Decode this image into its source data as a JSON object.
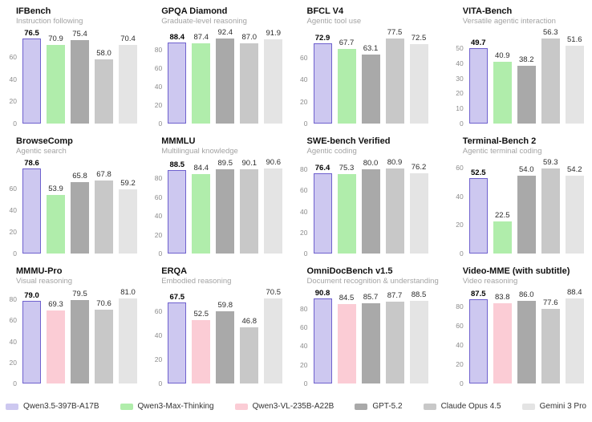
{
  "page": {
    "background": "#ffffff"
  },
  "colors": {
    "Qwen3.5-397B-A17B": {
      "fill": "#cdc8f0",
      "stroke": "#6f61ce"
    },
    "Qwen3-Max-Thinking": {
      "fill": "#b0edab"
    },
    "Qwen3-VL-235B-A22B": {
      "fill": "#fbccd5"
    },
    "GPT-5.2": {
      "fill": "#a9a9a9"
    },
    "Claude Opus 4.5": {
      "fill": "#c8c8c8"
    },
    "Gemini 3 Pro": {
      "fill": "#e4e4e4"
    }
  },
  "legend": {
    "position": "bottom",
    "items": [
      {
        "label": "Qwen3.5-397B-A17B",
        "color": "#cdc8f0"
      },
      {
        "label": "Qwen3-Max-Thinking",
        "color": "#b0edab"
      },
      {
        "label": "Qwen3-VL-235B-A22B",
        "color": "#fbccd5"
      },
      {
        "label": "GPT-5.2",
        "color": "#a9a9a9"
      },
      {
        "label": "Claude Opus 4.5",
        "color": "#c8c8c8"
      },
      {
        "label": "Gemini 3 Pro",
        "color": "#e4e4e4"
      }
    ]
  },
  "chart_data": [
    {
      "type": "bar",
      "title": "IFBench",
      "subtitle": "Instruction following",
      "series": [
        "Qwen3.5-397B-A17B",
        "Qwen3-Max-Thinking",
        "GPT-5.2",
        "Claude Opus 4.5",
        "Gemini 3 Pro"
      ],
      "values": [
        76.5,
        70.9,
        75.4,
        58.0,
        70.4
      ],
      "yticks": [
        0,
        20,
        40,
        60
      ],
      "ylim": [
        0,
        76.5
      ],
      "grid": false
    },
    {
      "type": "bar",
      "title": "GPQA Diamond",
      "subtitle": "Graduate-level reasoning",
      "series": [
        "Qwen3.5-397B-A17B",
        "Qwen3-Max-Thinking",
        "GPT-5.2",
        "Claude Opus 4.5",
        "Gemini 3 Pro"
      ],
      "values": [
        88.4,
        87.4,
        92.4,
        87.0,
        91.9
      ],
      "yticks": [
        0,
        20,
        40,
        60,
        80
      ],
      "ylim": [
        0,
        92.4
      ],
      "grid": false
    },
    {
      "type": "bar",
      "title": "BFCL V4",
      "subtitle": "Agentic tool use",
      "series": [
        "Qwen3.5-397B-A17B",
        "Qwen3-Max-Thinking",
        "GPT-5.2",
        "Claude Opus 4.5",
        "Gemini 3 Pro"
      ],
      "values": [
        72.9,
        67.7,
        63.1,
        77.5,
        72.5
      ],
      "yticks": [
        0,
        20,
        40,
        60
      ],
      "ylim": [
        0,
        77.5
      ],
      "grid": false
    },
    {
      "type": "bar",
      "title": "VITA-Bench",
      "subtitle": "Versatile agentic interaction",
      "series": [
        "Qwen3.5-397B-A17B",
        "Qwen3-Max-Thinking",
        "GPT-5.2",
        "Claude Opus 4.5",
        "Gemini 3 Pro"
      ],
      "values": [
        49.7,
        40.9,
        38.2,
        56.3,
        51.6
      ],
      "yticks": [
        0,
        10,
        20,
        30,
        40,
        50
      ],
      "ylim": [
        0,
        56.3
      ],
      "grid": false
    },
    {
      "type": "bar",
      "title": "BrowseComp",
      "subtitle": "Agentic search",
      "series": [
        "Qwen3.5-397B-A17B",
        "Qwen3-Max-Thinking",
        "GPT-5.2",
        "Claude Opus 4.5",
        "Gemini 3 Pro"
      ],
      "values": [
        78.6,
        53.9,
        65.8,
        67.8,
        59.2
      ],
      "yticks": [
        0,
        20,
        40,
        60
      ],
      "ylim": [
        0,
        78.6
      ],
      "grid": false
    },
    {
      "type": "bar",
      "title": "MMMLU",
      "subtitle": "Multilingual knowledge",
      "series": [
        "Qwen3.5-397B-A17B",
        "Qwen3-Max-Thinking",
        "GPT-5.2",
        "Claude Opus 4.5",
        "Gemini 3 Pro"
      ],
      "values": [
        88.5,
        84.4,
        89.5,
        90.1,
        90.6
      ],
      "yticks": [
        0,
        20,
        40,
        60,
        80
      ],
      "ylim": [
        0,
        90.6
      ],
      "grid": false
    },
    {
      "type": "bar",
      "title": "SWE-bench Verified",
      "subtitle": "Agentic coding",
      "series": [
        "Qwen3.5-397B-A17B",
        "Qwen3-Max-Thinking",
        "GPT-5.2",
        "Claude Opus 4.5",
        "Gemini 3 Pro"
      ],
      "values": [
        76.4,
        75.3,
        80.0,
        80.9,
        76.2
      ],
      "yticks": [
        0,
        20,
        40,
        60,
        80
      ],
      "ylim": [
        0,
        80.9
      ],
      "grid": false
    },
    {
      "type": "bar",
      "title": "Terminal-Bench 2",
      "subtitle": "Agentic terminal coding",
      "series": [
        "Qwen3.5-397B-A17B",
        "Qwen3-Max-Thinking",
        "GPT-5.2",
        "Claude Opus 4.5",
        "Gemini 3 Pro"
      ],
      "values": [
        52.5,
        22.5,
        54.0,
        59.3,
        54.2
      ],
      "yticks": [
        0,
        20,
        40,
        60
      ],
      "ylim": [
        0,
        59.3
      ],
      "grid": false
    },
    {
      "type": "bar",
      "title": "MMMU-Pro",
      "subtitle": "Visual reasoning",
      "series": [
        "Qwen3.5-397B-A17B",
        "Qwen3-VL-235B-A22B",
        "GPT-5.2",
        "Claude Opus 4.5",
        "Gemini 3 Pro"
      ],
      "values": [
        79.0,
        69.3,
        79.5,
        70.6,
        81.0
      ],
      "yticks": [
        0,
        20,
        40,
        60,
        80
      ],
      "ylim": [
        0,
        81.0
      ],
      "grid": false
    },
    {
      "type": "bar",
      "title": "ERQA",
      "subtitle": "Embodied reasoning",
      "series": [
        "Qwen3.5-397B-A17B",
        "Qwen3-VL-235B-A22B",
        "GPT-5.2",
        "Claude Opus 4.5",
        "Gemini 3 Pro"
      ],
      "values": [
        67.5,
        52.5,
        59.8,
        46.8,
        70.5
      ],
      "yticks": [
        0,
        20,
        40,
        60
      ],
      "ylim": [
        0,
        70.5
      ],
      "grid": false
    },
    {
      "type": "bar",
      "title": "OmniDocBench v1.5",
      "subtitle": "Document recognition & understanding",
      "series": [
        "Qwen3.5-397B-A17B",
        "Qwen3-VL-235B-A22B",
        "GPT-5.2",
        "Claude Opus 4.5",
        "Gemini 3 Pro"
      ],
      "values": [
        90.8,
        84.5,
        85.7,
        87.7,
        88.5
      ],
      "yticks": [
        0,
        20,
        40,
        60,
        80
      ],
      "ylim": [
        0,
        90.8
      ],
      "grid": false
    },
    {
      "type": "bar",
      "title": "Video-MME (with subtitle)",
      "subtitle": "Video reasoning",
      "series": [
        "Qwen3.5-397B-A17B",
        "Qwen3-VL-235B-A22B",
        "GPT-5.2",
        "Claude Opus 4.5",
        "Gemini 3 Pro"
      ],
      "values": [
        87.5,
        83.8,
        86.0,
        77.6,
        88.4
      ],
      "yticks": [
        0,
        20,
        40,
        60,
        80
      ],
      "ylim": [
        0,
        88.4
      ],
      "grid": false
    }
  ]
}
